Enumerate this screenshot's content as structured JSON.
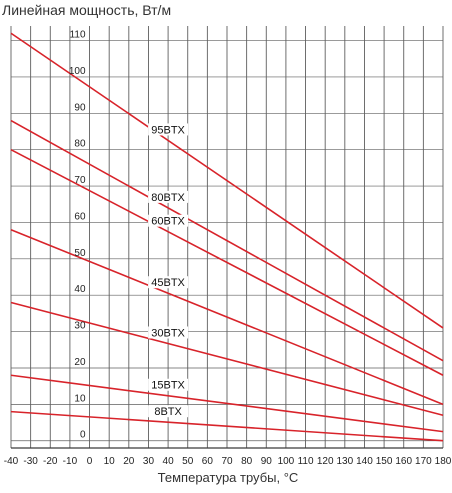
{
  "chart_data": {
    "type": "line",
    "title": "Линейная мощность, Вт/м",
    "xlabel": "Температура трубы, °С",
    "ylabel": "",
    "xlim": [
      -40,
      180
    ],
    "ylim": [
      -2,
      114
    ],
    "x_ticks": [
      -40,
      -30,
      -20,
      -10,
      0,
      10,
      20,
      30,
      40,
      50,
      60,
      70,
      80,
      90,
      100,
      110,
      120,
      130,
      140,
      150,
      160,
      170,
      180
    ],
    "y_ticks": [
      0,
      10,
      20,
      30,
      40,
      50,
      60,
      70,
      80,
      90,
      100,
      110
    ],
    "grid": true,
    "series_color": "#d8232a",
    "series": [
      {
        "name": "95BTX",
        "points": [
          [
            -40,
            112
          ],
          [
            180,
            31
          ]
        ]
      },
      {
        "name": "80BTX",
        "points": [
          [
            -40,
            88
          ],
          [
            180,
            22
          ]
        ]
      },
      {
        "name": "60BTX",
        "points": [
          [
            -40,
            80
          ],
          [
            180,
            18
          ]
        ]
      },
      {
        "name": "45BTX",
        "points": [
          [
            -40,
            58
          ],
          [
            180,
            10
          ]
        ]
      },
      {
        "name": "30BTX",
        "points": [
          [
            -40,
            38
          ],
          [
            180,
            7
          ]
        ]
      },
      {
        "name": "15BTX",
        "points": [
          [
            -40,
            18
          ],
          [
            180,
            2.5
          ]
        ]
      },
      {
        "name": "8BTX",
        "points": [
          [
            -40,
            8
          ],
          [
            180,
            0
          ]
        ]
      }
    ]
  }
}
